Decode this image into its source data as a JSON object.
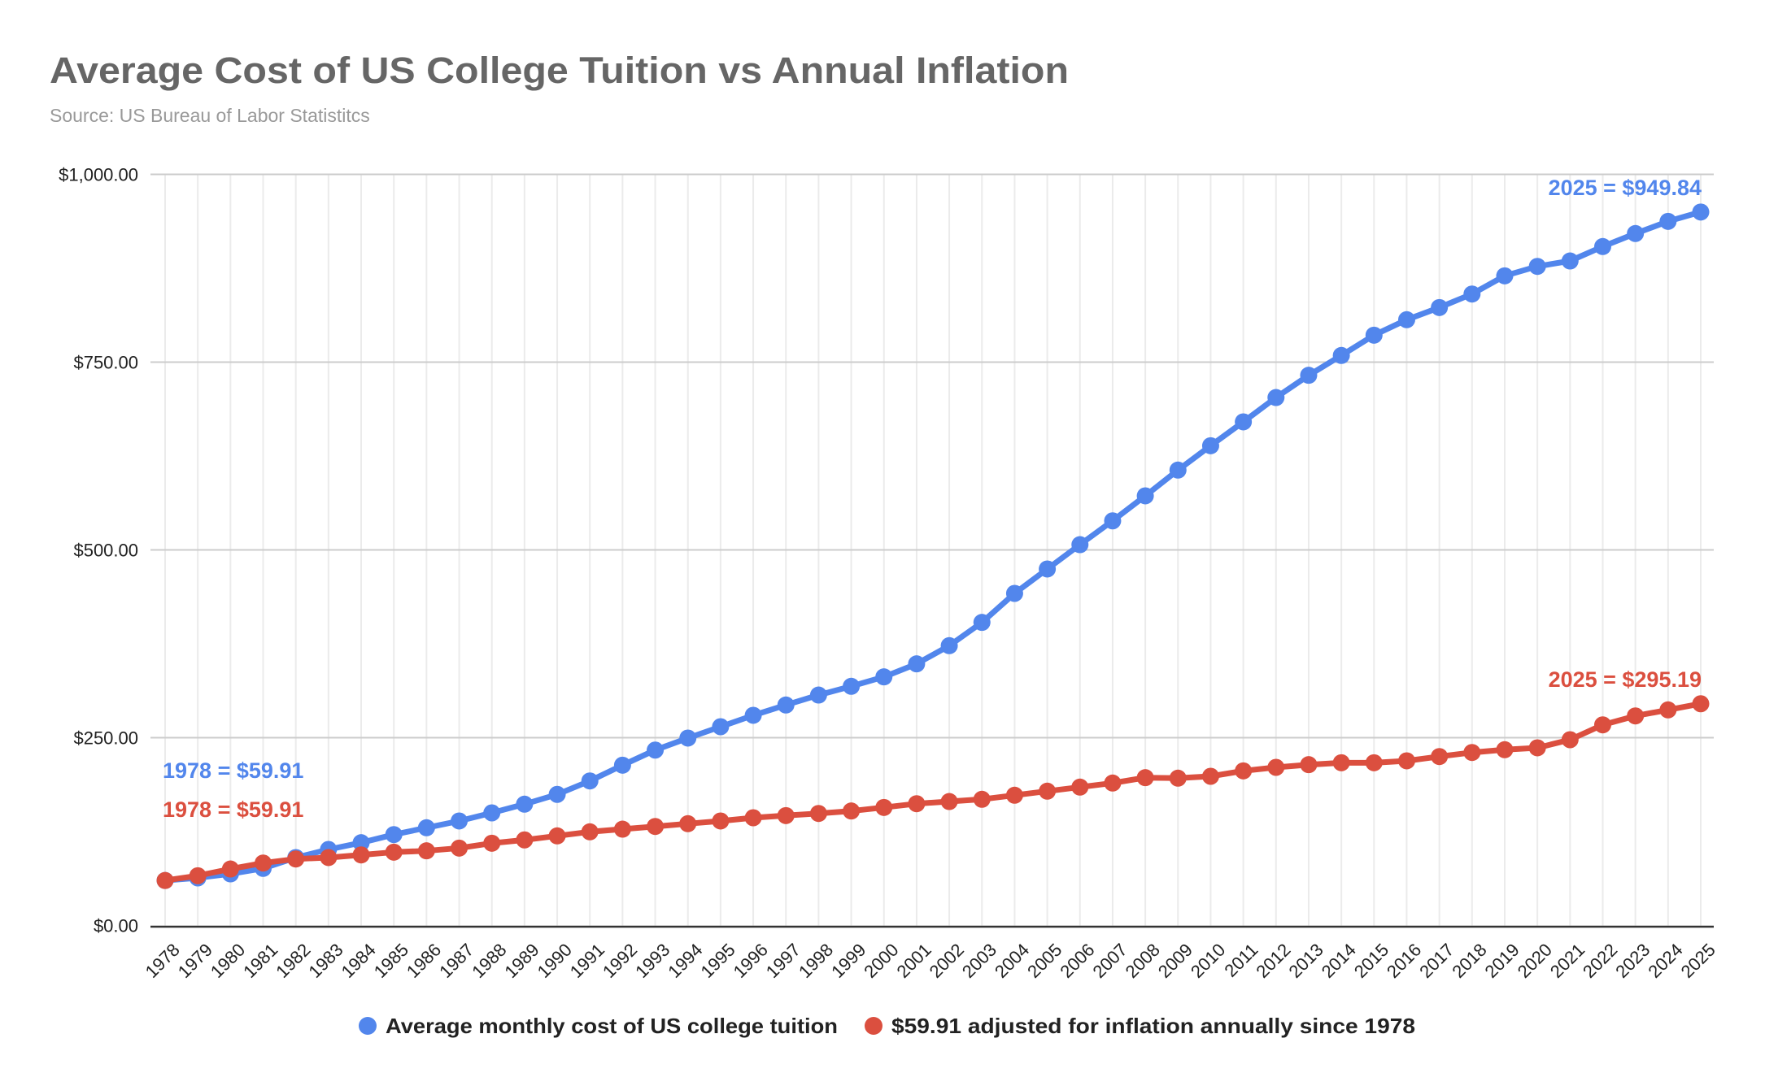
{
  "chart_data": {
    "type": "line",
    "title": "Average Cost of US College Tuition vs Annual Inflation",
    "subtitle": "Source: US Bureau of Labor Statistitcs",
    "xlabel": "",
    "ylabel": "",
    "ylim": [
      0,
      1000
    ],
    "y_ticks": [
      {
        "value": 0,
        "label": "$0.00"
      },
      {
        "value": 250,
        "label": "$250.00"
      },
      {
        "value": 500,
        "label": "$500.00"
      },
      {
        "value": 750,
        "label": "$750.00"
      },
      {
        "value": 1000,
        "label": "$1,000.00"
      }
    ],
    "grid": true,
    "legend_position": "bottom",
    "x": [
      "1978",
      "1979",
      "1980",
      "1981",
      "1982",
      "1983",
      "1984",
      "1985",
      "1986",
      "1987",
      "1988",
      "1989",
      "1990",
      "1991",
      "1992",
      "1993",
      "1994",
      "1995",
      "1996",
      "1997",
      "1998",
      "1999",
      "2000",
      "2001",
      "2002",
      "2003",
      "2004",
      "2005",
      "2006",
      "2007",
      "2008",
      "2009",
      "2010",
      "2011",
      "2012",
      "2013",
      "2014",
      "2015",
      "2016",
      "2017",
      "2018",
      "2019",
      "2020",
      "2021",
      "2022",
      "2023",
      "2024",
      "2025"
    ],
    "series": [
      {
        "name": "Average monthly cost of US college tuition",
        "color": "#5286EC",
        "values": [
          59.91,
          63.3,
          68.7,
          76.0,
          90.4,
          101.2,
          110.2,
          121.0,
          130.1,
          139.1,
          149.9,
          161.5,
          174.5,
          192.4,
          213.4,
          233.5,
          249.5,
          264.6,
          279.8,
          293.5,
          306.8,
          318.4,
          331.0,
          348.3,
          372.5,
          403.5,
          442.1,
          474.6,
          507.0,
          538.7,
          572.0,
          606.3,
          638.7,
          670.5,
          702.9,
          732.5,
          758.9,
          785.9,
          806.5,
          822.7,
          840.7,
          864.9,
          877.5,
          884.7,
          903.9,
          921.2,
          937.4,
          949.84
        ]
      },
      {
        "name": "$59.91 adjusted for inflation annually since 1978",
        "color": "#DB4F3F",
        "values": [
          59.91,
          66.2,
          75.2,
          83.1,
          88.5,
          90.4,
          93.9,
          97.6,
          99.4,
          103.0,
          109.5,
          113.9,
          119.3,
          124.7,
          128.2,
          131.8,
          135.5,
          139.1,
          143.4,
          146.3,
          149.1,
          152.4,
          157.1,
          162.1,
          165.0,
          168.0,
          173.4,
          178.8,
          184.2,
          189.6,
          196.8,
          196.1,
          198.6,
          205.8,
          210.5,
          214.1,
          216.6,
          216.6,
          219.2,
          224.9,
          230.3,
          234.0,
          236.5,
          247.3,
          267.1,
          279.0,
          287.0,
          295.19
        ]
      }
    ],
    "annotations": [
      {
        "series": 0,
        "text": "1978 = $59.91",
        "at": "1978"
      },
      {
        "series": 1,
        "text": "1978 = $59.91",
        "at": "1978"
      },
      {
        "series": 0,
        "text": "2025 = $949.84",
        "at": "2025"
      },
      {
        "series": 1,
        "text": "2025 = $295.19",
        "at": "2025"
      }
    ]
  },
  "colors": {
    "title": "#666666",
    "subtitle": "#999999",
    "gridline": "#cccccc",
    "vgrid": "#ebebeb",
    "axis": "#333333"
  }
}
